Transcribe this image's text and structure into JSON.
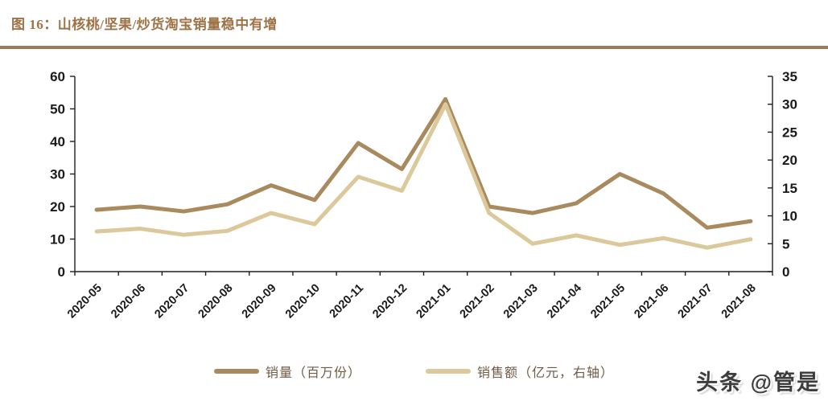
{
  "title": "图 16：山核桃/坚果/炒货淘宝销量稳中有增",
  "watermark": "头条 @管是",
  "colors": {
    "title": "#9e7347",
    "divider": "#9c7a52",
    "axis": "#1f1f1f",
    "tick_label": "#1a1a1a",
    "legend_text": "#6f5b44",
    "watermark_text": "#3d3d3d",
    "volume_line": "#a98a5e",
    "revenue_line": "#dbc89b"
  },
  "chart_data": {
    "type": "line",
    "title": "山核桃/坚果/炒货淘宝销量稳中有增",
    "x": [
      "2020-05",
      "2020-06",
      "2020-07",
      "2020-08",
      "2020-09",
      "2020-10",
      "2020-11",
      "2020-12",
      "2021-01",
      "2021-02",
      "2021-03",
      "2021-04",
      "2021-05",
      "2021-06",
      "2021-07",
      "2021-08"
    ],
    "series": [
      {
        "name": "销量（百万份）",
        "axis": "left",
        "color": "#a98a5e",
        "values": [
          19,
          20,
          18.5,
          20.7,
          26.5,
          22,
          39.5,
          31.5,
          53,
          20,
          18,
          21,
          30,
          24,
          13.5,
          15.5
        ]
      },
      {
        "name": "销售额（亿元，右轴）",
        "axis": "right",
        "color": "#dbc89b",
        "values": [
          7.2,
          7.7,
          6.6,
          7.3,
          10.5,
          8.5,
          17,
          14.5,
          30,
          10.5,
          5,
          6.5,
          4.8,
          6,
          4.3,
          5.8
        ]
      }
    ],
    "left_axis": {
      "min": 0,
      "max": 60,
      "step": 10,
      "ticks": [
        "0",
        "10",
        "20",
        "30",
        "40",
        "50",
        "60"
      ]
    },
    "right_axis": {
      "min": 0,
      "max": 35,
      "step": 5,
      "ticks": [
        "0",
        "5",
        "10",
        "15",
        "20",
        "25",
        "30",
        "35"
      ]
    },
    "grid": false,
    "legend_position": "bottom",
    "x_label_rotation": -45
  }
}
